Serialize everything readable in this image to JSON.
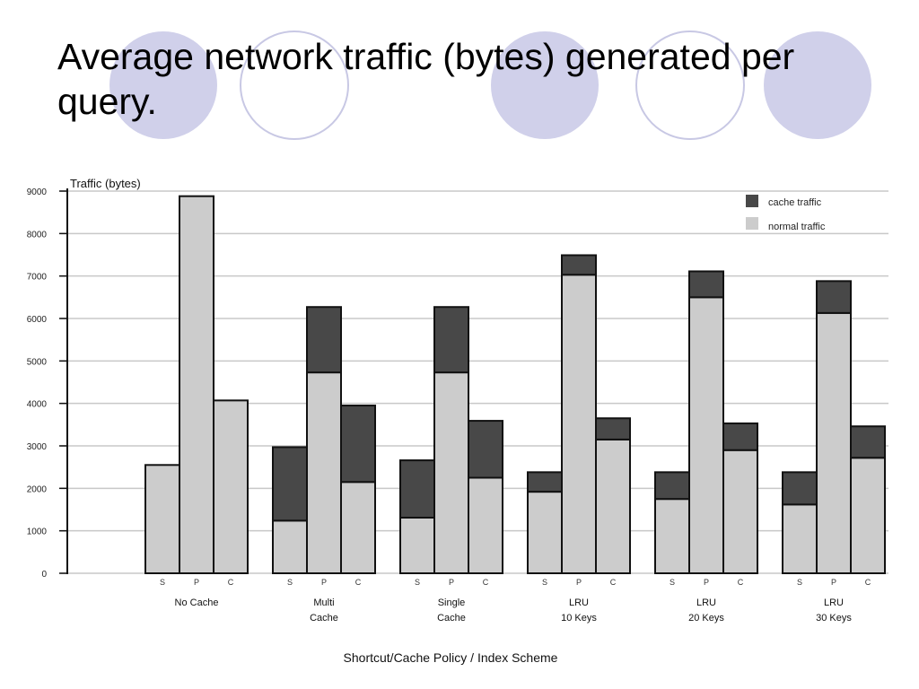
{
  "slide": {
    "title": "Average network traffic (bytes) generated per query."
  },
  "colors": {
    "cache": "#484848",
    "normal": "#cccccc",
    "circle_fill": "#d0d0ea",
    "circle_stroke": "#c8c8e4"
  },
  "chart_data": {
    "type": "bar",
    "stacked": true,
    "ylabel": "Traffic (bytes)",
    "xlabel": "Shortcut/Cache Policy / Index Scheme",
    "ylim": [
      0,
      9000
    ],
    "yticks": [
      "0",
      "1000",
      "2000",
      "3000",
      "4000",
      "5000",
      "6000",
      "7000",
      "8000",
      "9000"
    ],
    "grid": true,
    "legend_position": "top-right",
    "groups": [
      {
        "label": [
          "No Cache"
        ],
        "bars": [
          {
            "scheme": "S",
            "normal": 2550,
            "cache": 0
          },
          {
            "scheme": "P",
            "normal": 8880,
            "cache": 0
          },
          {
            "scheme": "C",
            "normal": 4070,
            "cache": 0
          }
        ]
      },
      {
        "label": [
          "Multi",
          "Cache"
        ],
        "bars": [
          {
            "scheme": "S",
            "normal": 1240,
            "cache": 1730
          },
          {
            "scheme": "P",
            "normal": 4730,
            "cache": 1540
          },
          {
            "scheme": "C",
            "normal": 2150,
            "cache": 1800
          }
        ]
      },
      {
        "label": [
          "Single",
          "Cache"
        ],
        "bars": [
          {
            "scheme": "S",
            "normal": 1310,
            "cache": 1350
          },
          {
            "scheme": "P",
            "normal": 4730,
            "cache": 1540
          },
          {
            "scheme": "C",
            "normal": 2250,
            "cache": 1340
          }
        ]
      },
      {
        "label": [
          "LRU",
          "10 Keys"
        ],
        "bars": [
          {
            "scheme": "S",
            "normal": 1920,
            "cache": 460
          },
          {
            "scheme": "P",
            "normal": 7030,
            "cache": 460
          },
          {
            "scheme": "C",
            "normal": 3150,
            "cache": 500
          }
        ]
      },
      {
        "label": [
          "LRU",
          "20 Keys"
        ],
        "bars": [
          {
            "scheme": "S",
            "normal": 1750,
            "cache": 630
          },
          {
            "scheme": "P",
            "normal": 6500,
            "cache": 610
          },
          {
            "scheme": "C",
            "normal": 2900,
            "cache": 630
          }
        ]
      },
      {
        "label": [
          "LRU",
          "30 Keys"
        ],
        "bars": [
          {
            "scheme": "S",
            "normal": 1620,
            "cache": 760
          },
          {
            "scheme": "P",
            "normal": 6130,
            "cache": 750
          },
          {
            "scheme": "C",
            "normal": 2720,
            "cache": 740
          }
        ]
      }
    ],
    "series": [
      {
        "name": "cache traffic"
      },
      {
        "name": "normal traffic"
      }
    ]
  }
}
